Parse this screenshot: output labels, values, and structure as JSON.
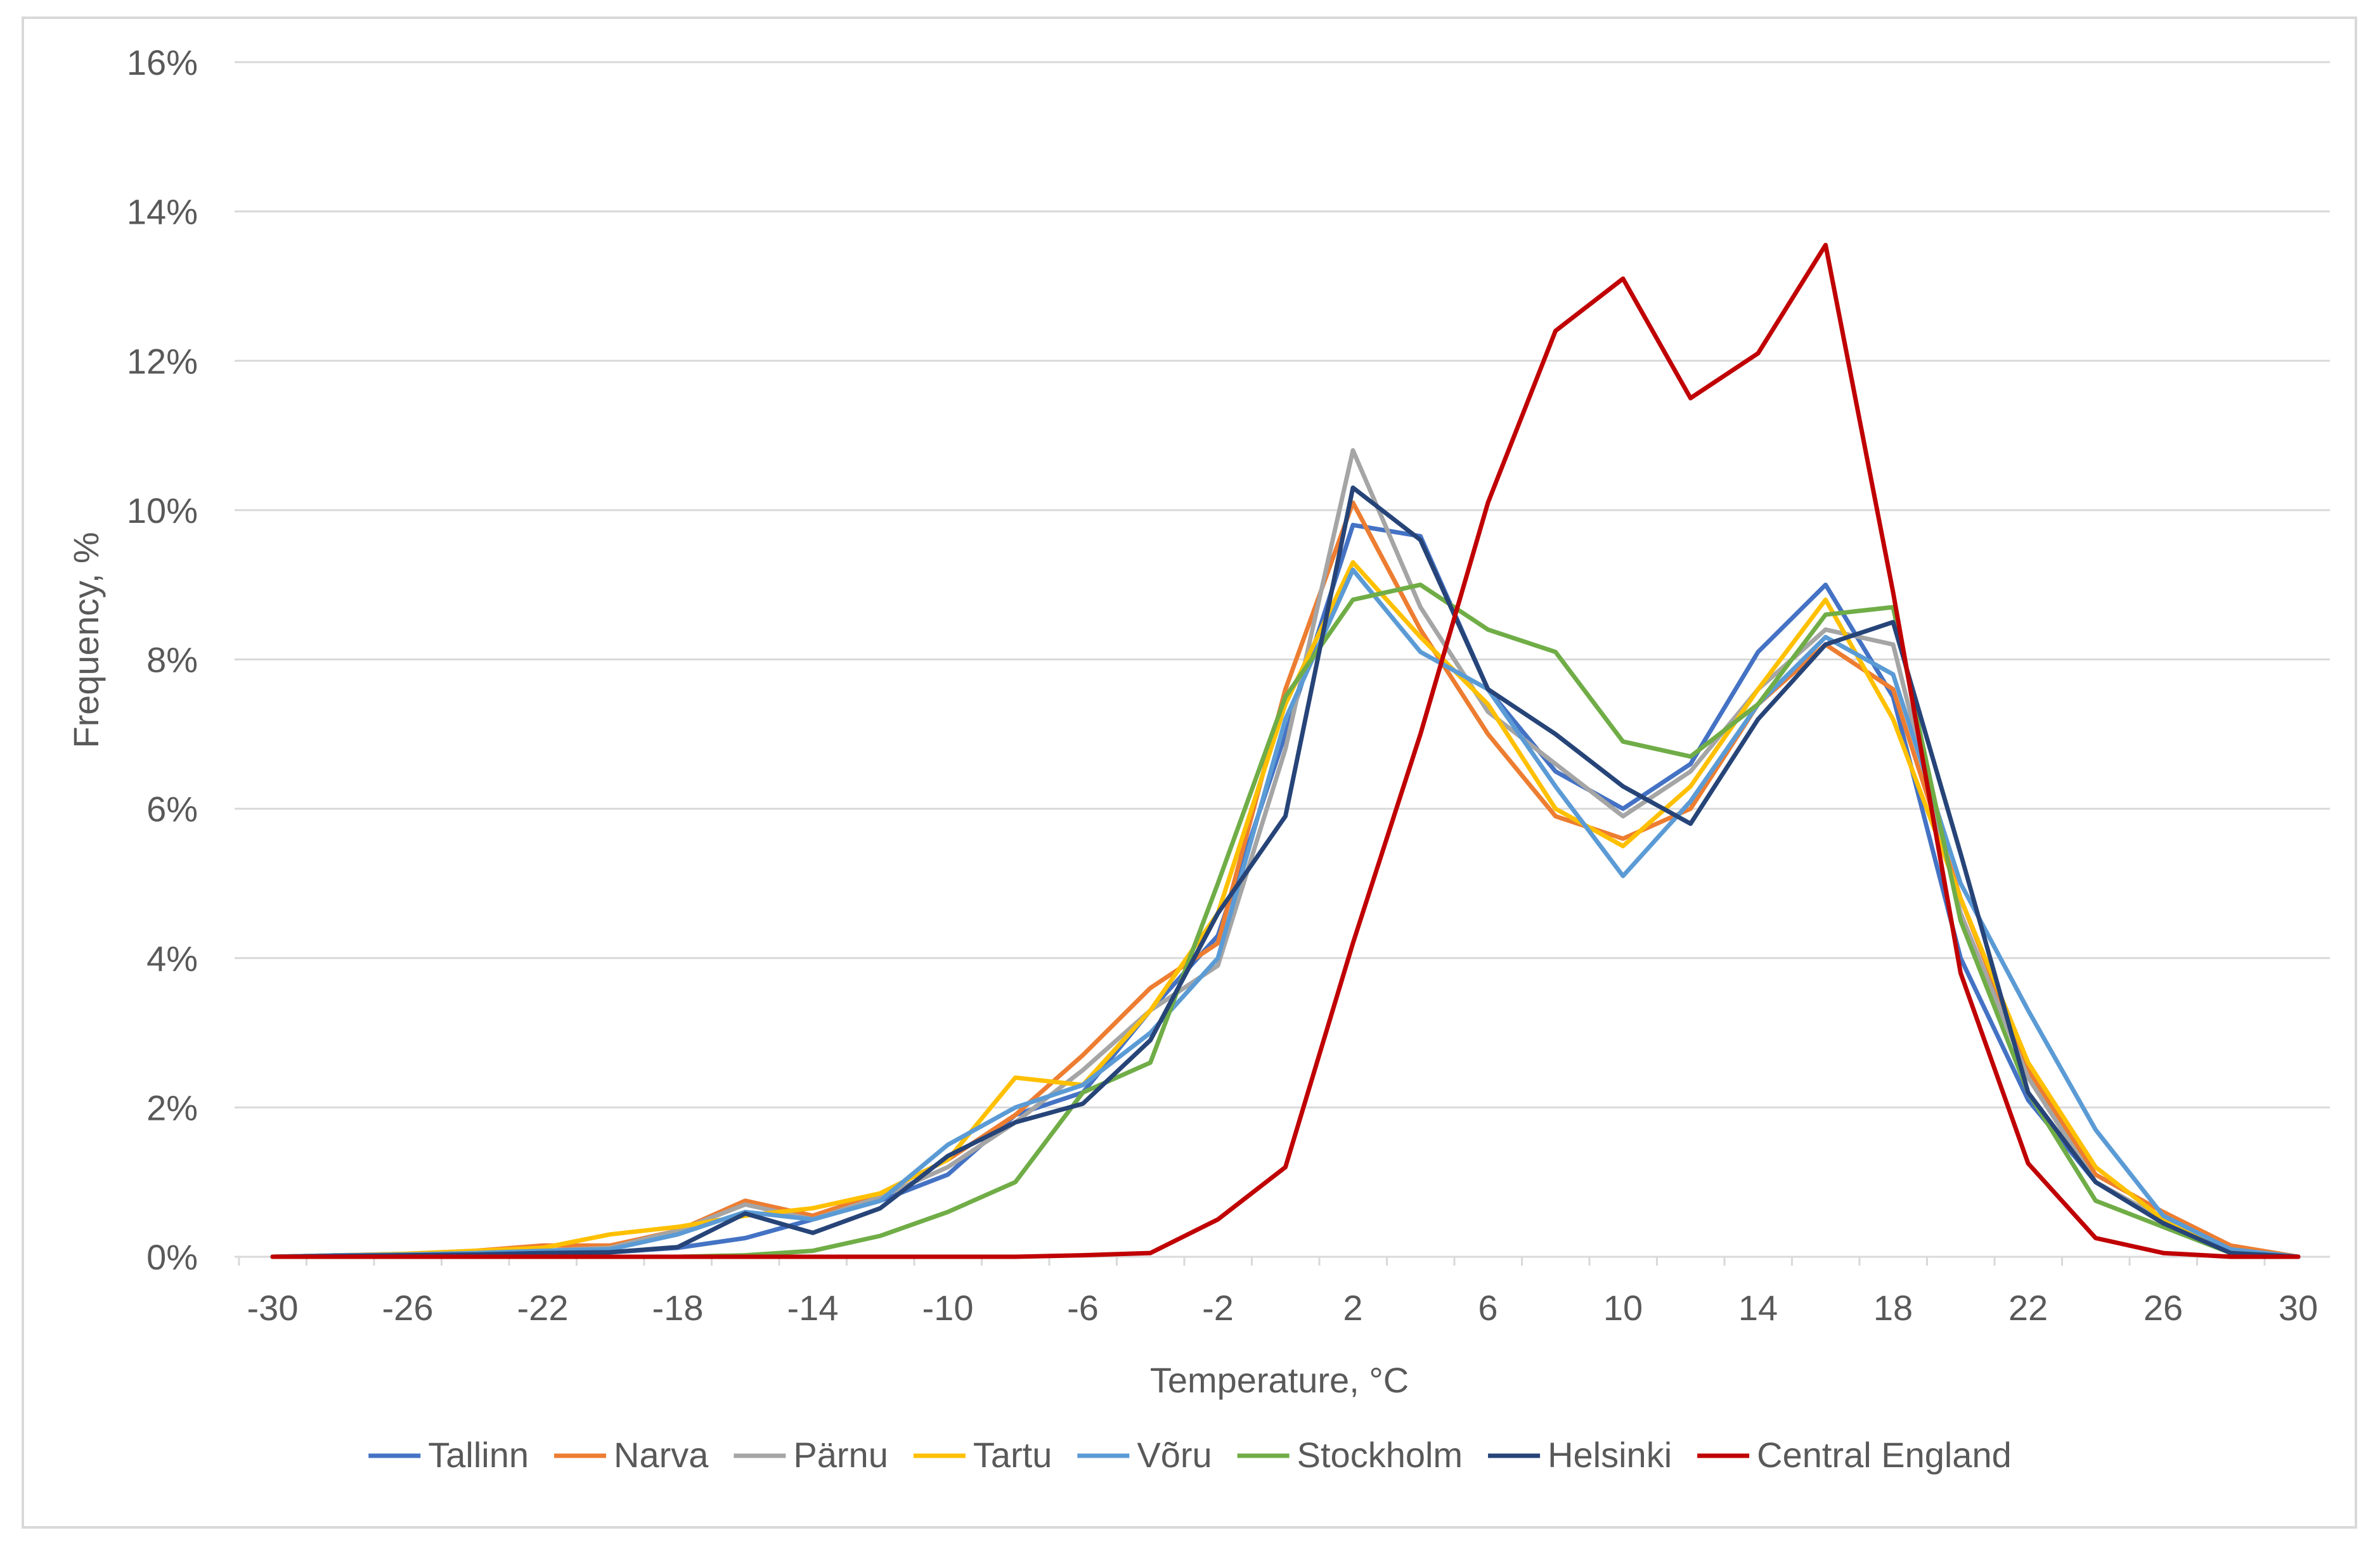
{
  "chart_data": {
    "type": "line",
    "title": "",
    "xlabel": "Temperature, °C",
    "ylabel": "Frequency, %",
    "xlim": [
      -30,
      30
    ],
    "ylim": [
      0,
      16
    ],
    "x_ticks": [
      -30,
      -26,
      -22,
      -18,
      -14,
      -10,
      -6,
      -2,
      2,
      6,
      10,
      14,
      18,
      22,
      26,
      30
    ],
    "y_ticks": [
      0,
      2,
      4,
      6,
      8,
      10,
      12,
      14,
      16
    ],
    "y_tick_labels": [
      "0%",
      "2%",
      "4%",
      "6%",
      "8%",
      "10%",
      "12%",
      "14%",
      "16%"
    ],
    "grid": true,
    "legend_position": "bottom",
    "x": [
      -30,
      -28,
      -26,
      -24,
      -22,
      -20,
      -18,
      -16,
      -14,
      -12,
      -10,
      -8,
      -6,
      -4,
      -2,
      0,
      2,
      4,
      6,
      8,
      10,
      12,
      14,
      16,
      18,
      20,
      22,
      24,
      26,
      28,
      30
    ],
    "series": [
      {
        "name": "Tallinn",
        "color": "#4472c4",
        "values": [
          0,
          0.02,
          0.03,
          0.05,
          0.07,
          0.06,
          0.12,
          0.25,
          0.5,
          0.75,
          1.1,
          1.9,
          2.2,
          3.3,
          4.3,
          7.0,
          9.8,
          9.65,
          7.6,
          6.5,
          6.0,
          6.6,
          8.1,
          9.0,
          7.5,
          4.0,
          2.1,
          1.0,
          0.5,
          0.1,
          0.0
        ]
      },
      {
        "name": "Narva",
        "color": "#ed7d31",
        "values": [
          0,
          0.02,
          0.04,
          0.08,
          0.15,
          0.15,
          0.35,
          0.75,
          0.55,
          0.85,
          1.3,
          1.9,
          2.7,
          3.6,
          4.2,
          7.6,
          10.1,
          8.4,
          7.0,
          5.9,
          5.6,
          6.0,
          7.4,
          8.2,
          7.6,
          4.8,
          2.5,
          1.1,
          0.6,
          0.15,
          0.0
        ]
      },
      {
        "name": "Pärnu",
        "color": "#a5a5a5",
        "values": [
          0,
          0.01,
          0.03,
          0.05,
          0.08,
          0.12,
          0.35,
          0.7,
          0.5,
          0.8,
          1.2,
          1.8,
          2.5,
          3.3,
          3.9,
          6.8,
          10.8,
          8.7,
          7.3,
          6.6,
          5.9,
          6.5,
          7.6,
          8.4,
          8.2,
          4.6,
          2.4,
          1.0,
          0.5,
          0.1,
          0.0
        ]
      },
      {
        "name": "Tartu",
        "color": "#ffc000",
        "values": [
          0,
          0.02,
          0.04,
          0.08,
          0.12,
          0.3,
          0.4,
          0.55,
          0.65,
          0.85,
          1.3,
          2.4,
          2.3,
          3.3,
          4.6,
          7.4,
          9.3,
          8.3,
          7.4,
          6.0,
          5.5,
          6.3,
          7.6,
          8.8,
          7.2,
          4.8,
          2.6,
          1.2,
          0.5,
          0.1,
          0.0
        ]
      },
      {
        "name": "Võru",
        "color": "#5b9bd5",
        "values": [
          0,
          0.02,
          0.03,
          0.05,
          0.08,
          0.1,
          0.3,
          0.6,
          0.5,
          0.75,
          1.5,
          2.0,
          2.3,
          3.0,
          4.0,
          7.2,
          9.2,
          8.1,
          7.6,
          6.3,
          5.1,
          6.1,
          7.4,
          8.3,
          7.8,
          5.0,
          3.3,
          1.7,
          0.55,
          0.1,
          0.0
        ]
      },
      {
        "name": "Stockholm",
        "color": "#70ad47",
        "values": [
          0,
          0,
          0,
          0,
          0,
          0,
          0,
          0.02,
          0.08,
          0.28,
          0.6,
          1.0,
          2.2,
          2.6,
          5.0,
          7.5,
          8.8,
          9.0,
          8.4,
          8.1,
          6.9,
          6.7,
          7.4,
          8.6,
          8.7,
          4.5,
          2.2,
          0.75,
          0.4,
          0.05,
          0.0
        ]
      },
      {
        "name": "Helsinki",
        "color": "#264478",
        "values": [
          0,
          0.01,
          0.02,
          0.03,
          0.05,
          0.06,
          0.13,
          0.58,
          0.32,
          0.65,
          1.35,
          1.8,
          2.05,
          2.9,
          4.6,
          5.9,
          10.3,
          9.6,
          7.6,
          7.0,
          6.3,
          5.8,
          7.2,
          8.2,
          8.5,
          5.4,
          2.2,
          1.0,
          0.45,
          0.05,
          0.0
        ]
      },
      {
        "name": "Central England",
        "color": "#c00000",
        "values": [
          0,
          0,
          0,
          0,
          0,
          0,
          0,
          0,
          0,
          0,
          0,
          0,
          0.02,
          0.05,
          0.5,
          1.2,
          4.2,
          7.0,
          10.1,
          12.4,
          13.1,
          11.5,
          12.1,
          13.55,
          8.9,
          3.8,
          1.25,
          0.25,
          0.05,
          0,
          0
        ]
      }
    ]
  }
}
